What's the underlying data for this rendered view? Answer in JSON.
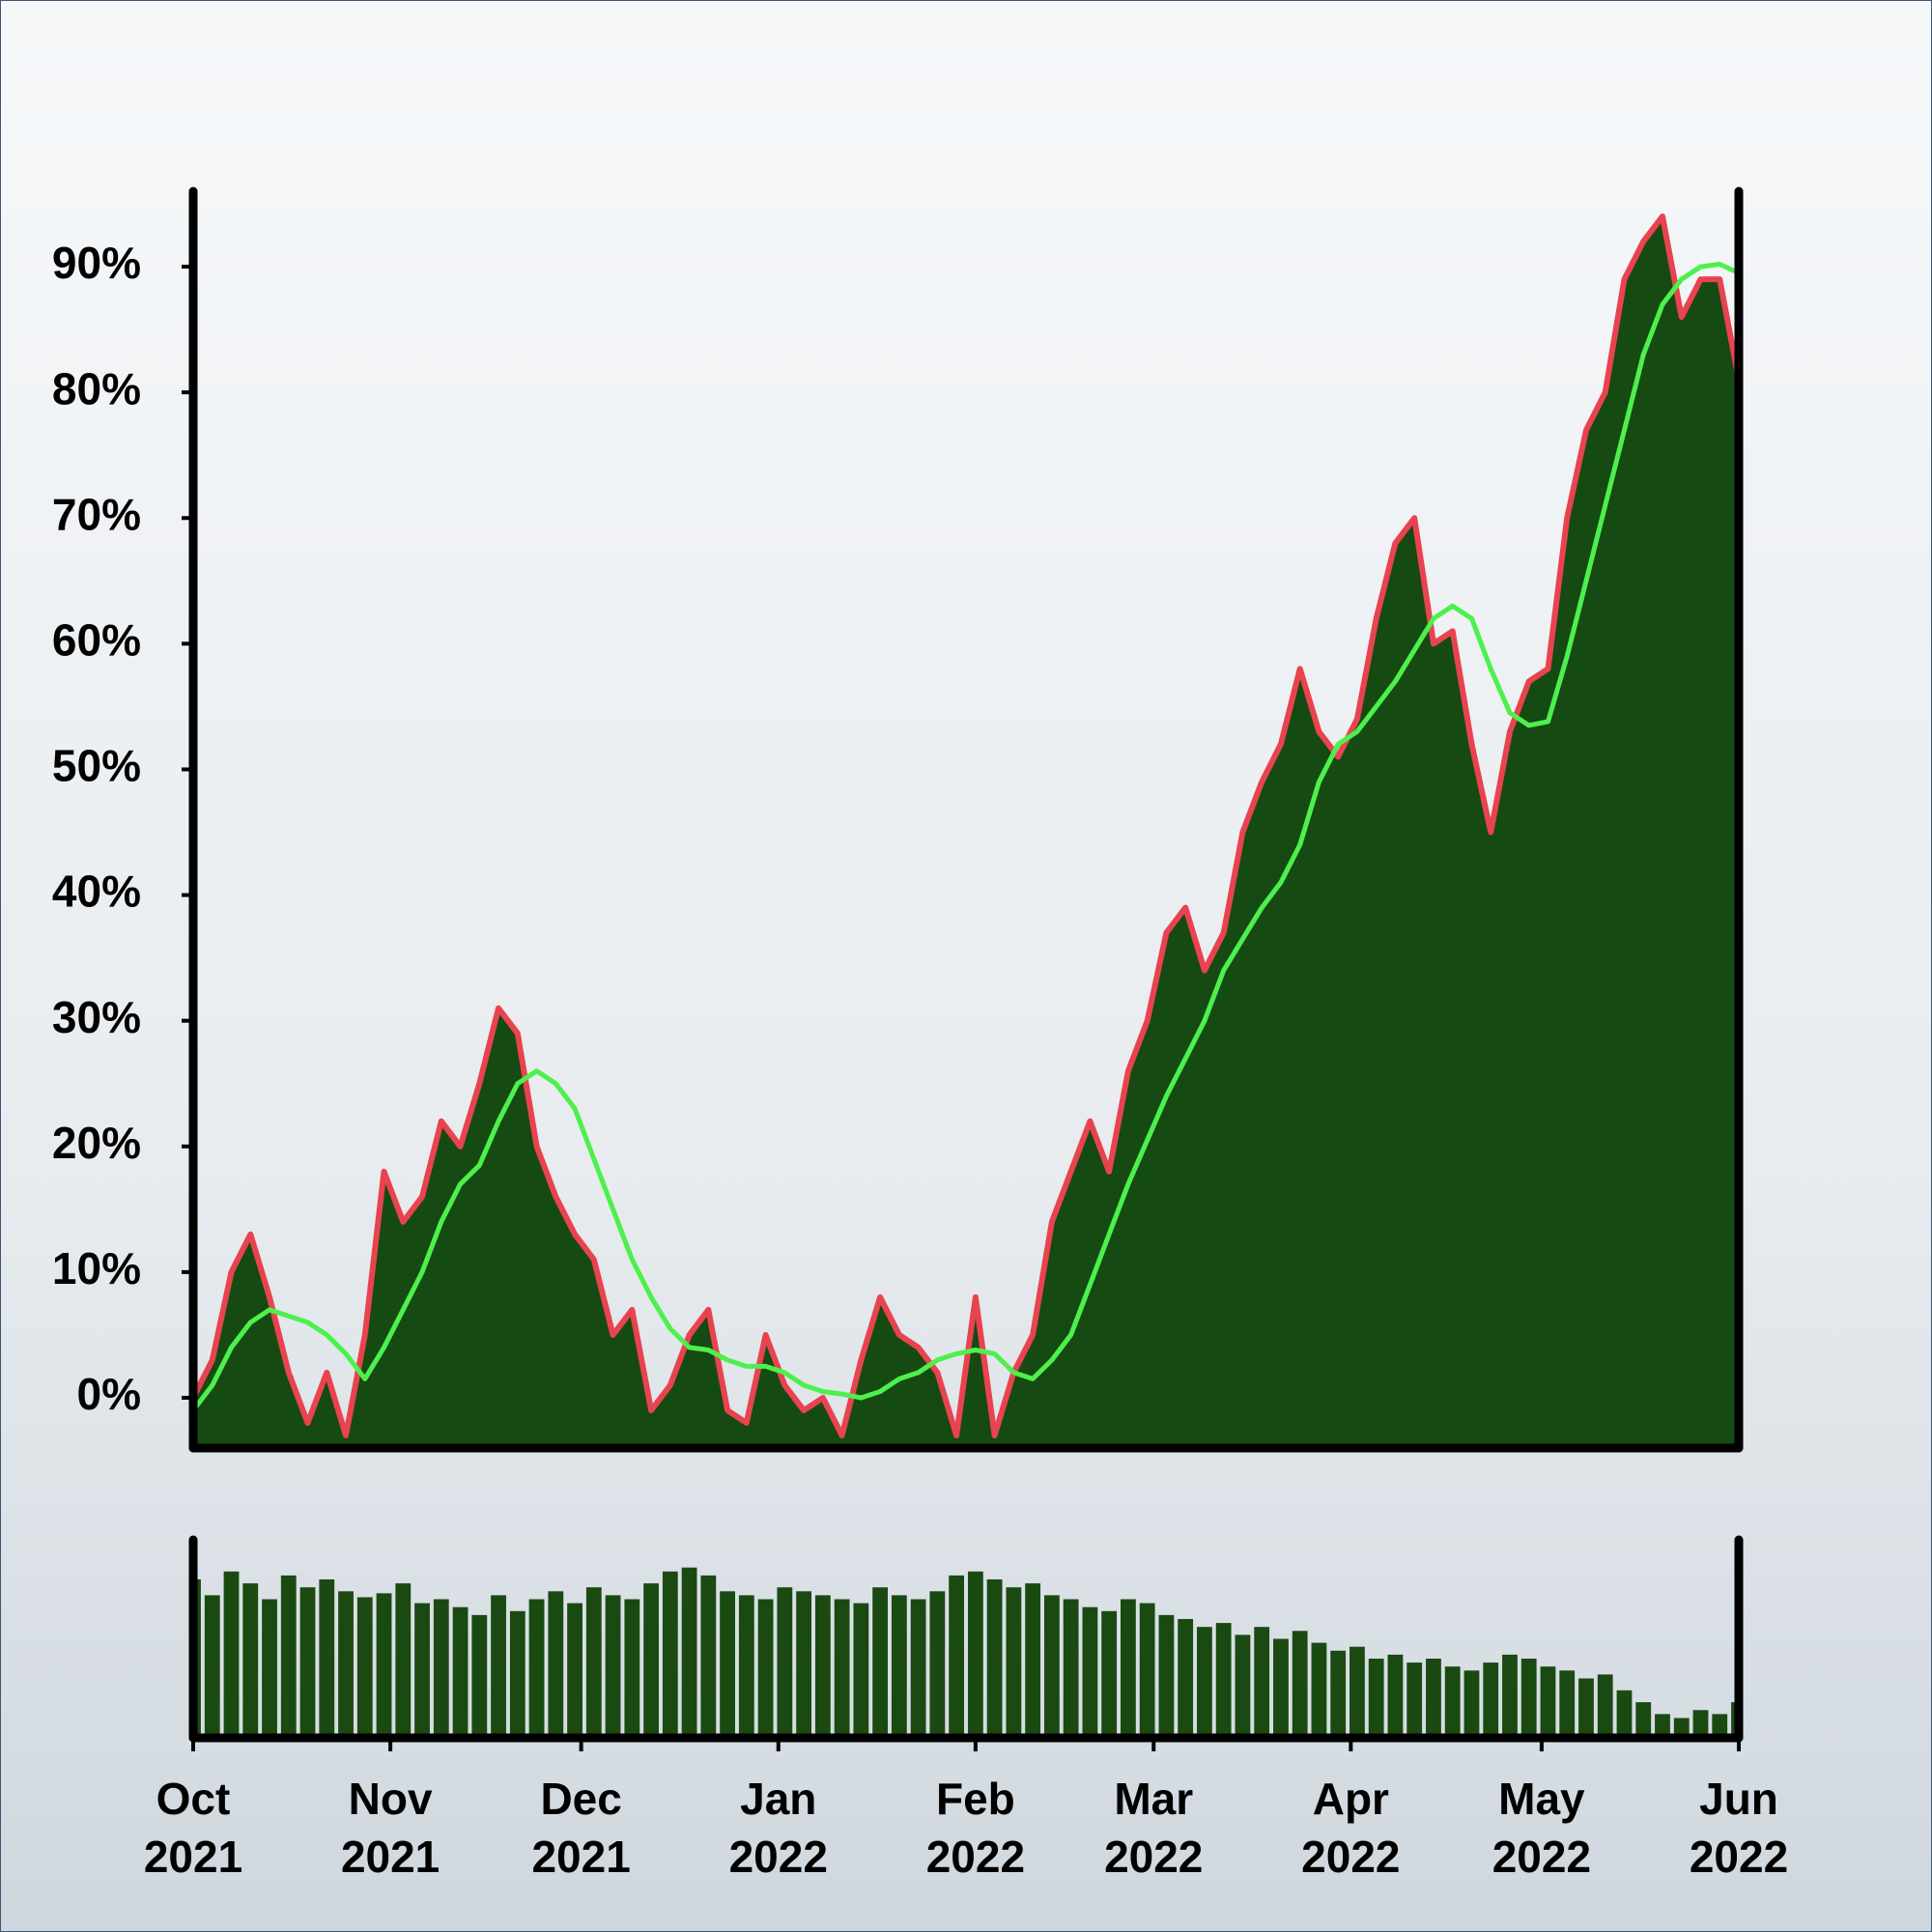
{
  "chart_data": [
    {
      "type": "area",
      "x": [
        0,
        3,
        6,
        9,
        12,
        15,
        18,
        21,
        24,
        27,
        30,
        33,
        36,
        39,
        42,
        45,
        48,
        51,
        54,
        57,
        60,
        63,
        66,
        69,
        72,
        75,
        78,
        81,
        84,
        87,
        90,
        93,
        96,
        99,
        102,
        105,
        108,
        111,
        114,
        117,
        120,
        123,
        126,
        129,
        132,
        135,
        138,
        141,
        144,
        147,
        150,
        153,
        156,
        159,
        162,
        165,
        168,
        171,
        174,
        177,
        180,
        183,
        186,
        189,
        192,
        195,
        198,
        201,
        204,
        207,
        210,
        213,
        216,
        219,
        222,
        225,
        228,
        231,
        234,
        237,
        240,
        243
      ],
      "xlim": [
        0,
        243
      ],
      "ylim": [
        -4,
        96
      ],
      "yticks": [
        {
          "value": 0,
          "label": "0%"
        },
        {
          "value": 10,
          "label": "10%"
        },
        {
          "value": 20,
          "label": "20%"
        },
        {
          "value": 30,
          "label": "30%"
        },
        {
          "value": 40,
          "label": "40%"
        },
        {
          "value": 50,
          "label": "50%"
        },
        {
          "value": 60,
          "label": "60%"
        },
        {
          "value": 70,
          "label": "70%"
        },
        {
          "value": 80,
          "label": "80%"
        },
        {
          "value": 90,
          "label": "90%"
        }
      ],
      "series": [
        {
          "type": "area",
          "color": "#e8434f",
          "fill": "#154a12",
          "values": [
            0,
            3,
            10,
            13,
            8,
            2,
            -2,
            2,
            -3,
            5,
            18,
            14,
            16,
            22,
            20,
            25,
            31,
            29,
            20,
            16,
            13,
            11,
            5,
            7,
            -1,
            1,
            5,
            7,
            -1,
            -2,
            5,
            1,
            -1,
            0,
            -3,
            3,
            8,
            5,
            4,
            2,
            -3,
            8,
            -3,
            2,
            5,
            14,
            18,
            22,
            18,
            26,
            30,
            37,
            39,
            34,
            37,
            45,
            49,
            52,
            58,
            53,
            51,
            54,
            62,
            68,
            70,
            60,
            61,
            52,
            45,
            53,
            57,
            58,
            70,
            77,
            80,
            89,
            92,
            94,
            86,
            89,
            89,
            81
          ]
        },
        {
          "type": "line",
          "color": "#4df04d",
          "values": [
            -1,
            1,
            4,
            6,
            7,
            6.5,
            6,
            5,
            3.5,
            1.5,
            4,
            7,
            10,
            14,
            17,
            18.5,
            22,
            25,
            26,
            25,
            23,
            19,
            15,
            11,
            8,
            5.5,
            4,
            3.8,
            3,
            2.5,
            2.5,
            2,
            1,
            0.5,
            0.3,
            0,
            0.5,
            1.5,
            2,
            3,
            3.5,
            3.8,
            3.5,
            2,
            1.5,
            3,
            5,
            9,
            13,
            17,
            20.5,
            24,
            27,
            30,
            34,
            36.5,
            39,
            41,
            44,
            49,
            52,
            53,
            55,
            57,
            59.5,
            62,
            63,
            62,
            58,
            54.5,
            53.5,
            53.8,
            59,
            65,
            71,
            77,
            83,
            87,
            89,
            90,
            90.2,
            89.5
          ]
        }
      ]
    },
    {
      "type": "bar",
      "x": [
        0,
        3,
        6,
        9,
        12,
        15,
        18,
        21,
        24,
        27,
        30,
        33,
        36,
        39,
        42,
        45,
        48,
        51,
        54,
        57,
        60,
        63,
        66,
        69,
        72,
        75,
        78,
        81,
        84,
        87,
        90,
        93,
        96,
        99,
        102,
        105,
        108,
        111,
        114,
        117,
        120,
        123,
        126,
        129,
        132,
        135,
        138,
        141,
        144,
        147,
        150,
        153,
        156,
        159,
        162,
        165,
        168,
        171,
        174,
        177,
        180,
        183,
        186,
        189,
        192,
        195,
        198,
        201,
        204,
        207,
        210,
        213,
        216,
        219,
        222,
        225,
        228,
        231,
        234,
        237,
        240,
        243
      ],
      "xlim": [
        0,
        243
      ],
      "ylim": [
        0,
        100
      ],
      "xticks": [
        {
          "value": 0,
          "label": "Oct 2021"
        },
        {
          "value": 31,
          "label": "Nov 2021"
        },
        {
          "value": 61,
          "label": "Dec 2021"
        },
        {
          "value": 92,
          "label": "Jan 2022"
        },
        {
          "value": 123,
          "label": "Feb 2022"
        },
        {
          "value": 151,
          "label": "Mar 2022"
        },
        {
          "value": 182,
          "label": "Apr 2022"
        },
        {
          "value": 212,
          "label": "May 2022"
        },
        {
          "value": 243,
          "label": "Jun 2022"
        }
      ],
      "color": "#1a4a12",
      "values": [
        80,
        72,
        84,
        78,
        70,
        82,
        76,
        80,
        74,
        71,
        73,
        78,
        68,
        70,
        66,
        62,
        72,
        64,
        70,
        74,
        68,
        76,
        72,
        70,
        78,
        84,
        86,
        82,
        74,
        72,
        70,
        76,
        74,
        72,
        70,
        68,
        76,
        72,
        70,
        74,
        82,
        84,
        80,
        76,
        78,
        72,
        70,
        66,
        64,
        70,
        68,
        62,
        60,
        56,
        58,
        52,
        56,
        50,
        54,
        48,
        44,
        46,
        40,
        42,
        38,
        40,
        36,
        34,
        38,
        42,
        40,
        36,
        34,
        30,
        32,
        24,
        18,
        12,
        10,
        14,
        12,
        18
      ]
    }
  ]
}
